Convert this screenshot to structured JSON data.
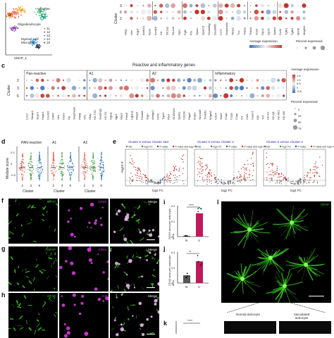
{
  "panel_labels": {
    "c": "c",
    "d": "d",
    "e": "e",
    "f": "f",
    "g": "g",
    "h": "h",
    "i": "i",
    "j": "j",
    "k": "k",
    "l": "l"
  },
  "top": {
    "umap_axis": "UMAP_1",
    "umap_axis_y": "UMAP_2",
    "clusters_label": "Cluster",
    "cell_labels": [
      "Astrocyte",
      "Oligodendrocyte",
      "Myeloid cell/ Microglia"
    ],
    "legend_numbers": [
      "11",
      "12",
      "13",
      "14",
      "15"
    ],
    "genes": [
      "Gfap",
      "Vim",
      "Aqp4",
      "Aldh1l1",
      "Apoe",
      "Kcnj10",
      "Cd",
      "Slc1a2",
      "Slc1a3",
      "Gja1",
      "Fgf2",
      "Ptn",
      "Sparc",
      "Sparcl1",
      "Gadd45g",
      "Gadd45b",
      "Lcn2",
      "Serpina3n",
      "Timp1",
      "Tnc",
      "Thbs1",
      "Thbs4",
      "Sox9",
      "Gpc4",
      "Gpc6",
      "Sparcl",
      "Cx43",
      "Tgfb1",
      "Tgfb2",
      "Mertk",
      "Megf10"
    ],
    "cluster_rows": [
      "3",
      "6",
      "2"
    ],
    "avg_expr_label": "Average expression",
    "avg_expr_ticks": [
      "-1.0",
      "-0.5",
      "0",
      "0.5",
      "1.0",
      "1.5"
    ],
    "pct_label": "Percent expressed",
    "pct_ticks": [
      "0",
      "25",
      "50",
      "75"
    ]
  },
  "panel_c": {
    "header": "Reactive and inflammatory genes",
    "groups": [
      "Pan-reactive",
      "A1",
      "A2",
      "Inflammatory"
    ],
    "cluster_label": "Cluster",
    "rows": [
      "2",
      "3",
      "6"
    ],
    "genes": [
      "Lcn2",
      "Steap4",
      "S1pr3",
      "Hspb1",
      "Cxcl10",
      "Cd44",
      "Vim",
      "Osmr",
      "Cp",
      "Serpina3n",
      "Aspg",
      "Vim",
      "Gfap",
      "H2-T23",
      "Serping1",
      "H2-D1",
      "Ggta1",
      "Iigp1",
      "Gbp2",
      "Fbln5",
      "Ugt1a1",
      "Fkbp5",
      "Psmb8",
      "Srgn",
      "Amigo2",
      "Clcf1",
      "Tgm1",
      "Ptx3",
      "S100a10",
      "Sphk1",
      "Cd109",
      "Ptgs2",
      "Emp1",
      "Slc10a6",
      "Tm4sf1",
      "B3gnt5",
      "Cd14",
      "Stat3",
      "C1qb",
      "C1qa",
      "C1qc",
      "C3",
      "Csf1",
      "Cx3cr1",
      "Il1b",
      "Tnf",
      "H2-K1",
      "H2-Q1",
      "H2-Ab1",
      "H2-M3"
    ],
    "avg_expr_label": "Average expression",
    "avg_ticks": [
      "1.5",
      "1.0",
      "0.5",
      "0",
      "-0.5"
    ],
    "pct_label": "Percent expressed",
    "pct_ticks": [
      "0",
      "25",
      "50",
      "75"
    ]
  },
  "panel_d": {
    "titles": [
      "PAN-reactive",
      "A1",
      "A2"
    ],
    "ylabel": "Module score",
    "xlabel": "Cluster",
    "xticks": [
      "2",
      "3",
      "6"
    ],
    "yticks": [
      "0.3",
      "0",
      "-0.3"
    ]
  },
  "panel_e": {
    "titles": [
      "Cluster 6 versus Cluster 2&3",
      "Cluster 6 versus Cluster 2",
      "Cluster 6 versus Cluster 3"
    ],
    "legend": [
      "NS",
      "log2 FC",
      "P-value",
      "P-value and log2 FC"
    ],
    "xlabel": "log2 FC",
    "ylabel": "-log10 P",
    "xticks": [
      "-3",
      "0",
      "3"
    ]
  },
  "micro": {
    "f": [
      "GFAP",
      "SOX9",
      "Merge"
    ],
    "g": [
      "GFAP",
      "CD44",
      "Merge"
    ],
    "h": [
      "GFAP",
      "C3",
      "Merge"
    ],
    "l_tag": "GFAP",
    "l_sub": [
      "Normal astrocyte",
      "Vacuolated astrocyte"
    ]
  },
  "panel_i": {
    "ylabel": "SOX9 area per astrocyte area",
    "x": [
      "N",
      "V"
    ],
    "sig": "****",
    "values": [
      0.01,
      0.3
    ],
    "yticks": [
      "0.4",
      "0.2",
      "0"
    ]
  },
  "panel_j": {
    "ylabel": "CD44 area per astrocyte area",
    "x": [
      "N",
      "V"
    ],
    "sig": "**",
    "values": [
      0.1,
      0.28
    ],
    "yticks": [
      "0.4",
      "0.2",
      "0"
    ]
  },
  "panel_k": {
    "sig": "****"
  },
  "colors": {
    "high": "#c0362c",
    "mid": "#f4f4f4",
    "low": "#3b6fb6",
    "bar_v": "#c2185b",
    "bar_n": "#555555",
    "green": "#39d11f",
    "magenta": "#d23cd8"
  }
}
